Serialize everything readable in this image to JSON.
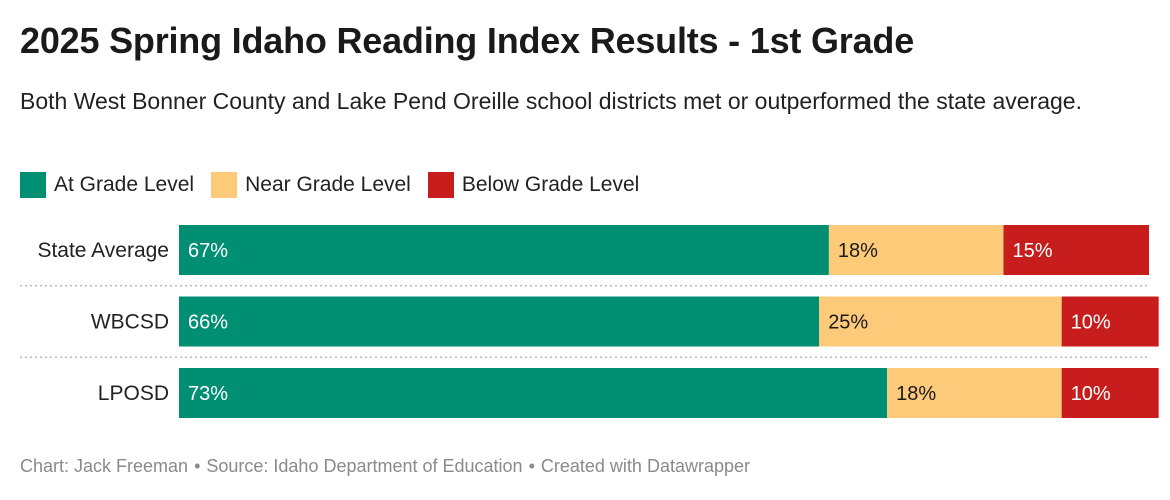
{
  "header": {
    "title": "2025 Spring Idaho Reading Index Results - 1st Grade",
    "subtitle": "Both West Bonner County and Lake Pend Oreille school districts met or outperformed the state average."
  },
  "colors": {
    "at": "#008f73",
    "near": "#fdca7a",
    "below": "#c71e1d",
    "label_light": "#ffffff",
    "label_dark": "#1a1a1a",
    "divider": "#bbbbbb"
  },
  "chart_data": {
    "type": "bar",
    "orientation": "horizontal",
    "stacked": true,
    "normalized_to_100": true,
    "categories": [
      "State Average",
      "WBCSD",
      "LPOSD"
    ],
    "series": [
      {
        "name": "At Grade Level",
        "color": "#008f73",
        "values": [
          67,
          66,
          73
        ],
        "labels": [
          "67%",
          "66%",
          "73%"
        ]
      },
      {
        "name": "Near Grade Level",
        "color": "#fdca7a",
        "values": [
          18,
          25,
          18
        ],
        "labels": [
          "18%",
          "25%",
          "18%"
        ]
      },
      {
        "name": "Below Grade Level",
        "color": "#c71e1d",
        "values": [
          15,
          10,
          10
        ],
        "labels": [
          "15%",
          "10%",
          "10%"
        ]
      }
    ],
    "xlim": [
      0,
      100
    ],
    "legend": "top-left",
    "grid": false
  },
  "footer": {
    "chart_credit": "Chart: Jack Freeman",
    "source": "Source: Idaho Department of Education",
    "made_with": "Created with Datawrapper",
    "separator": "•"
  }
}
